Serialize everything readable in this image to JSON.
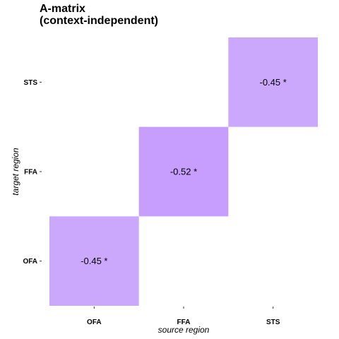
{
  "chart_data": {
    "type": "heatmap",
    "title": "A-matrix\n(context-independent)",
    "xlabel": "source region",
    "ylabel": "target region",
    "x_categories": [
      "OFA",
      "FFA",
      "STS"
    ],
    "y_categories": [
      "OFA",
      "FFA",
      "STS"
    ],
    "cells": [
      {
        "x": "OFA",
        "y": "OFA",
        "value": -0.45,
        "label": "-0.45 *",
        "color": "#cca8fd"
      },
      {
        "x": "FFA",
        "y": "FFA",
        "value": -0.52,
        "label": "-0.52 *",
        "color": "#c79dfd"
      },
      {
        "x": "STS",
        "y": "STS",
        "value": -0.45,
        "label": "-0.45 *",
        "color": "#cca8fd"
      }
    ],
    "grid": false,
    "legend": "none"
  }
}
